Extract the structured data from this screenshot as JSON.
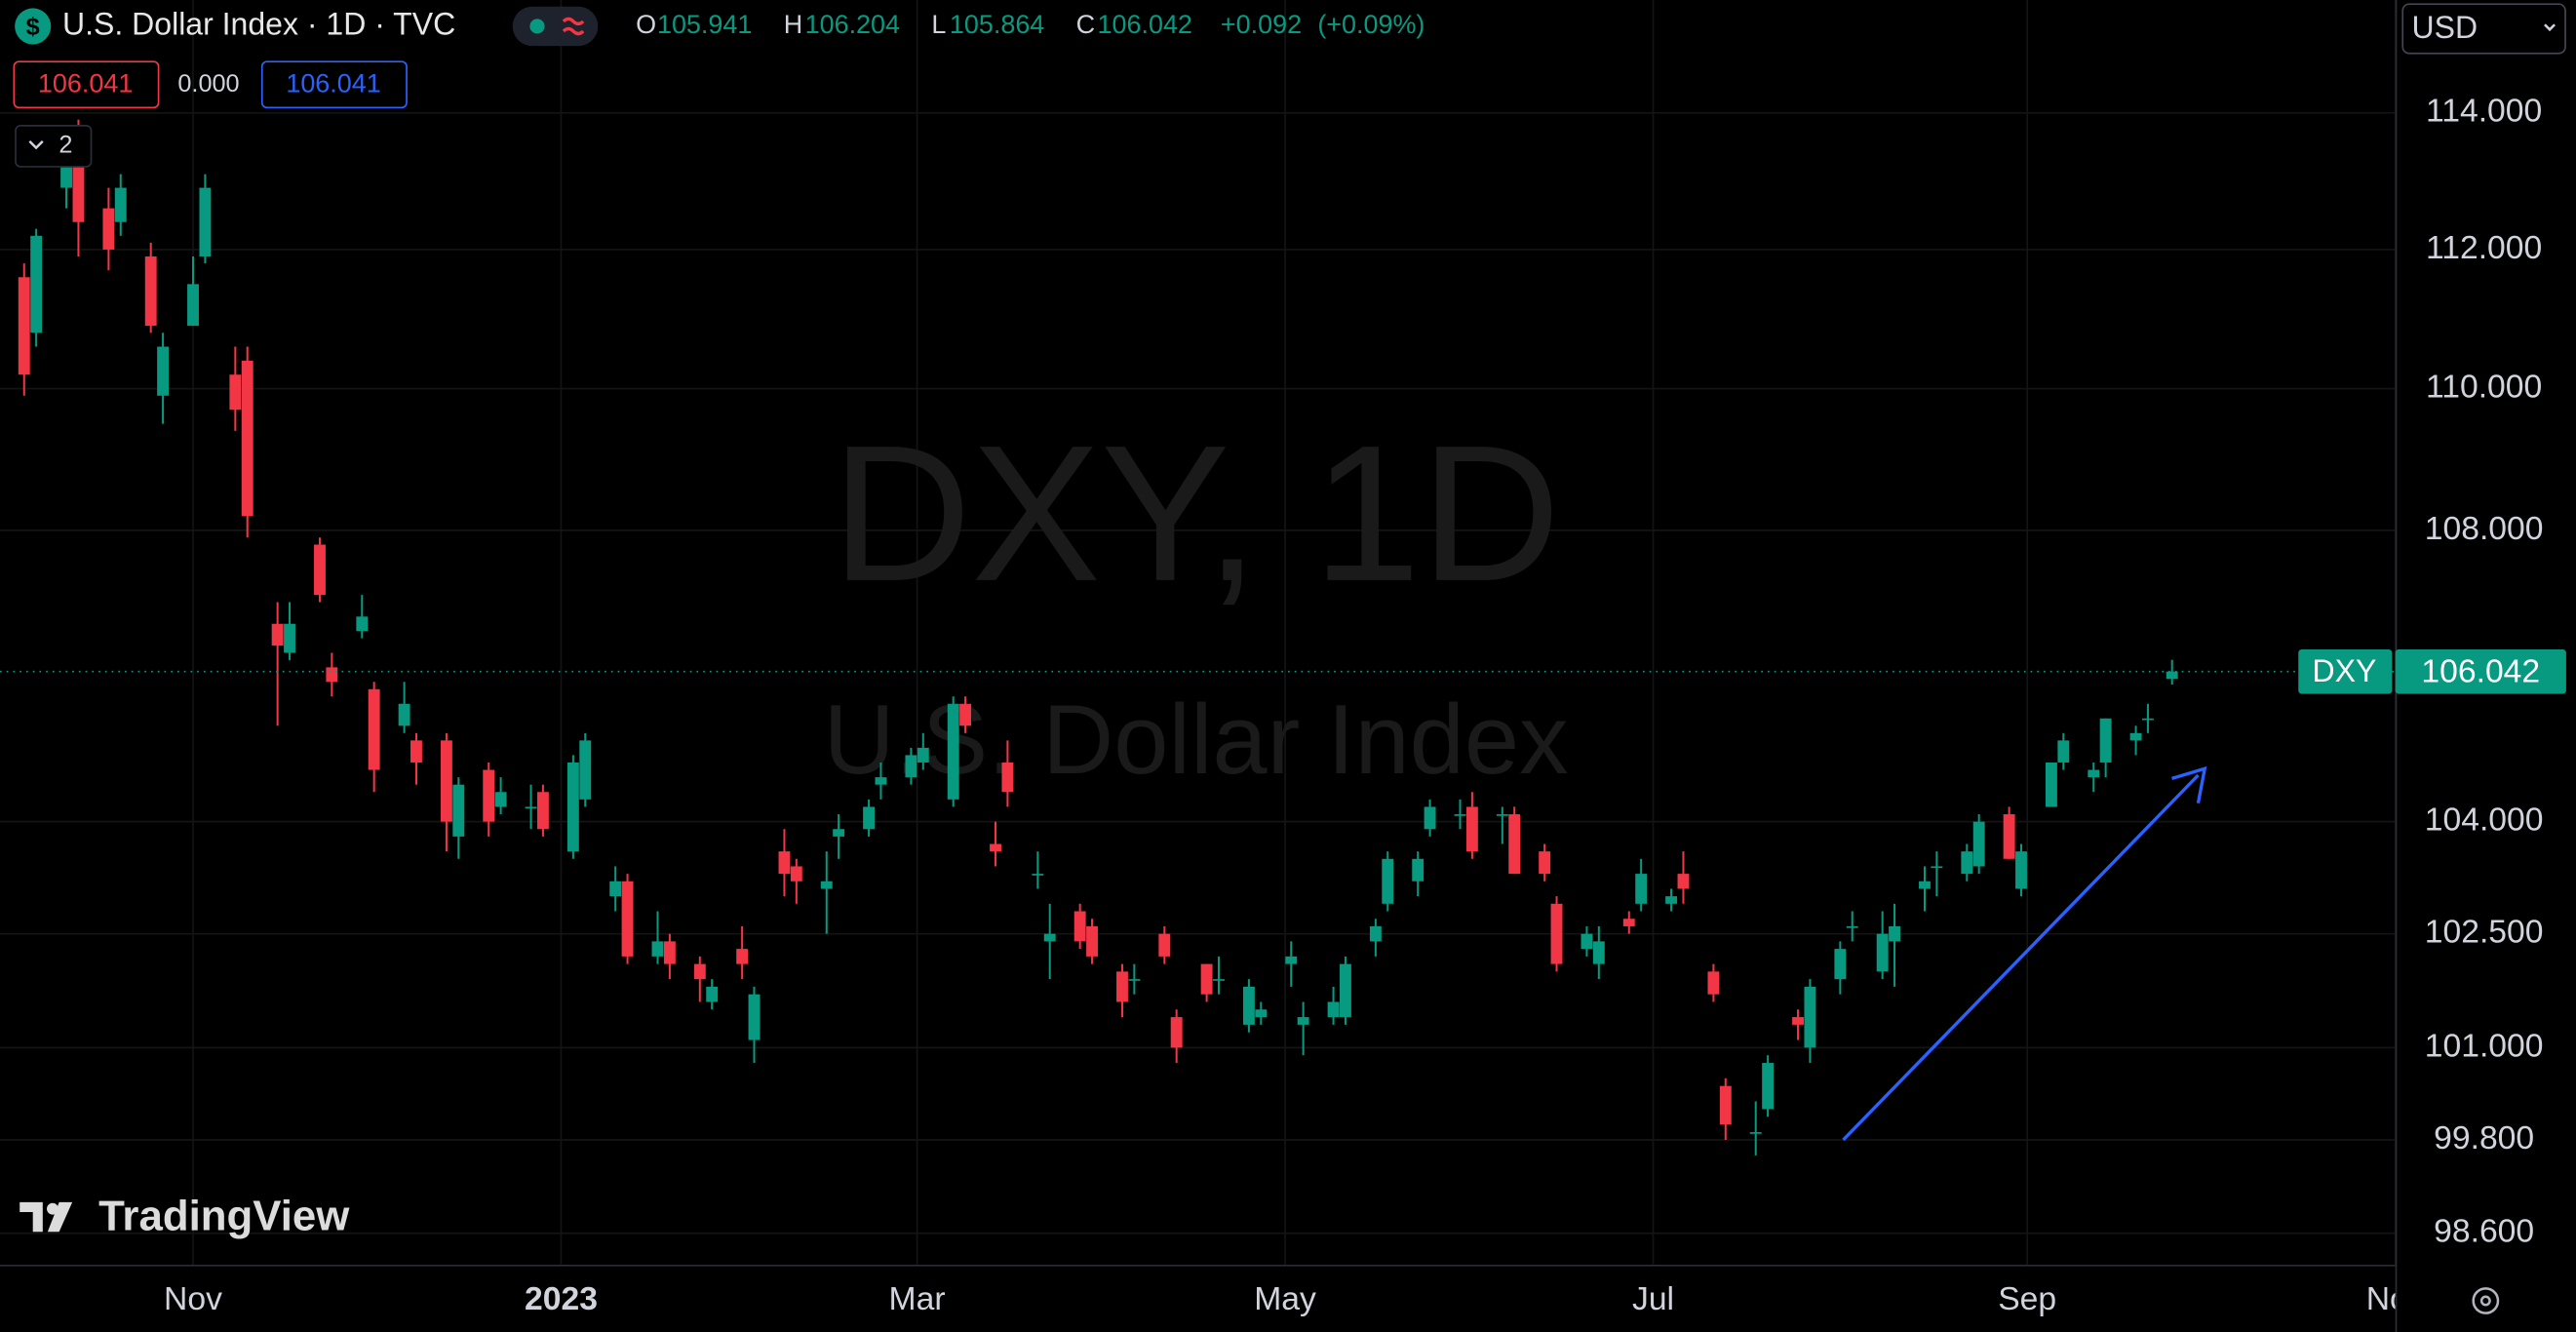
{
  "chart_data": {
    "type": "candlestick",
    "header": {
      "symbol_icon": "$",
      "title": "U.S. Dollar Index · 1D · TVC",
      "open_label": "O",
      "high_label": "H",
      "low_label": "L",
      "close_label": "C",
      "change": "+0.092",
      "change_percent": "(+0.09%)",
      "bid": "106.041",
      "spread": "0.000",
      "ask": "106.041",
      "indicators_count": "2",
      "currency": "USD"
    },
    "watermark": "DXY, 1D",
    "watermark_subtitle": "U.S. Dollar Index",
    "symbol": "DXY",
    "logo": "TradingView",
    "log": true,
    "grid": true,
    "up_color": "#089981",
    "down_color": "#f23645",
    "xlim": [
      "2022-09-30",
      "2023-11-01"
    ],
    "xticks": [
      {
        "value": "2022-11-01",
        "label": "Nov"
      },
      {
        "value": "2023-01-01",
        "label": "2023"
      },
      {
        "value": "2023-03-01",
        "label": "Mar"
      },
      {
        "value": "2023-05-01",
        "label": "May"
      },
      {
        "value": "2023-07-01",
        "label": "Jul"
      },
      {
        "value": "2023-09-01",
        "label": "Sep"
      },
      {
        "value": "2023-11-01",
        "label": "Nov"
      }
    ],
    "ylim": [
      98.2,
      115.68
    ],
    "yticks": [
      {
        "value": 114,
        "label": "114.000"
      },
      {
        "value": 112,
        "label": "112.000"
      },
      {
        "value": 110,
        "label": "110.000"
      },
      {
        "value": 108,
        "label": "108.000"
      },
      {
        "value": 104,
        "label": "104.000"
      },
      {
        "value": 102.5,
        "label": "102.500"
      },
      {
        "value": 101,
        "label": "101.000"
      },
      {
        "value": 99.8,
        "label": "99.800"
      },
      {
        "value": 98.6,
        "label": "98.600"
      }
    ],
    "x": [
      "2022-10-04",
      "2022-10-06",
      "2022-10-11",
      "2022-10-13",
      "2022-10-18",
      "2022-10-20",
      "2022-10-25",
      "2022-10-27",
      "2022-11-01",
      "2022-11-03",
      "2022-11-08",
      "2022-11-10",
      "2022-11-15",
      "2022-11-17",
      "2022-11-22",
      "2022-11-24",
      "2022-11-29",
      "2022-12-01",
      "2022-12-06",
      "2022-12-08",
      "2022-12-13",
      "2022-12-15",
      "2022-12-20",
      "2022-12-22",
      "2022-12-27",
      "2022-12-29",
      "2023-01-03",
      "2023-01-05",
      "2023-01-10",
      "2023-01-12",
      "2023-01-17",
      "2023-01-19",
      "2023-01-24",
      "2023-01-26",
      "2023-01-31",
      "2023-02-02",
      "2023-02-07",
      "2023-02-09",
      "2023-02-14",
      "2023-02-16",
      "2023-02-21",
      "2023-02-23",
      "2023-02-28",
      "2023-03-02",
      "2023-03-07",
      "2023-03-09",
      "2023-03-14",
      "2023-03-16",
      "2023-03-21",
      "2023-03-23",
      "2023-03-28",
      "2023-03-30",
      "2023-04-04",
      "2023-04-06",
      "2023-04-11",
      "2023-04-13",
      "2023-04-18",
      "2023-04-20",
      "2023-04-25",
      "2023-04-27",
      "2023-05-02",
      "2023-05-04",
      "2023-05-09",
      "2023-05-11",
      "2023-05-16",
      "2023-05-18",
      "2023-05-23",
      "2023-05-25",
      "2023-05-30",
      "2023-06-01",
      "2023-06-06",
      "2023-06-08",
      "2023-06-13",
      "2023-06-15",
      "2023-06-20",
      "2023-06-22",
      "2023-06-27",
      "2023-06-29",
      "2023-07-04",
      "2023-07-06",
      "2023-07-11",
      "2023-07-13",
      "2023-07-18",
      "2023-07-20",
      "2023-07-25",
      "2023-07-27",
      "2023-08-01",
      "2023-08-03",
      "2023-08-08",
      "2023-08-10",
      "2023-08-15",
      "2023-08-17",
      "2023-08-22",
      "2023-08-24",
      "2023-08-29",
      "2023-08-31",
      "2023-09-05",
      "2023-09-07",
      "2023-09-12",
      "2023-09-14",
      "2023-09-19",
      "2023-09-21",
      "2023-09-25"
    ],
    "ohlc": [
      [
        111.6,
        111.8,
        109.9,
        110.2
      ],
      [
        110.8,
        112.3,
        110.6,
        112.2
      ],
      [
        112.9,
        113.3,
        112.6,
        113.2
      ],
      [
        113.2,
        113.9,
        111.9,
        112.4
      ],
      [
        112.6,
        112.9,
        111.7,
        112.0
      ],
      [
        112.4,
        113.1,
        112.2,
        112.9
      ],
      [
        111.9,
        112.1,
        110.8,
        110.9
      ],
      [
        109.9,
        110.8,
        109.5,
        110.6
      ],
      [
        110.9,
        111.9,
        110.9,
        111.5
      ],
      [
        111.9,
        113.1,
        111.8,
        112.9
      ],
      [
        110.2,
        110.6,
        109.4,
        109.7
      ],
      [
        110.4,
        110.6,
        107.9,
        108.2
      ],
      [
        106.7,
        107.0,
        105.3,
        106.4
      ],
      [
        106.3,
        107.0,
        106.2,
        106.7
      ],
      [
        107.8,
        107.9,
        107.0,
        107.1
      ],
      [
        106.1,
        106.3,
        105.7,
        105.9
      ],
      [
        106.6,
        107.1,
        106.5,
        106.8
      ],
      [
        105.8,
        105.9,
        104.4,
        104.7
      ],
      [
        105.3,
        105.9,
        105.2,
        105.6
      ],
      [
        105.1,
        105.2,
        104.5,
        104.8
      ],
      [
        105.1,
        105.2,
        103.6,
        104.0
      ],
      [
        103.8,
        104.6,
        103.5,
        104.5
      ],
      [
        104.7,
        104.8,
        103.8,
        104.0
      ],
      [
        104.2,
        104.6,
        104.1,
        104.4
      ],
      [
        104.2,
        104.5,
        103.9,
        104.2
      ],
      [
        104.4,
        104.5,
        103.8,
        103.9
      ],
      [
        103.6,
        104.9,
        103.5,
        104.8
      ],
      [
        104.3,
        105.2,
        104.2,
        105.1
      ],
      [
        103.0,
        103.4,
        102.8,
        103.2
      ],
      [
        103.2,
        103.3,
        102.1,
        102.2
      ],
      [
        102.2,
        102.8,
        102.1,
        102.4
      ],
      [
        102.4,
        102.5,
        101.9,
        102.1
      ],
      [
        102.1,
        102.2,
        101.6,
        101.9
      ],
      [
        101.6,
        101.9,
        101.5,
        101.8
      ],
      [
        102.3,
        102.6,
        101.9,
        102.1
      ],
      [
        101.1,
        101.8,
        100.8,
        101.7
      ],
      [
        103.6,
        103.9,
        103.0,
        103.3
      ],
      [
        103.4,
        103.5,
        102.9,
        103.2
      ],
      [
        103.1,
        103.6,
        102.5,
        103.2
      ],
      [
        103.8,
        104.1,
        103.5,
        103.9
      ],
      [
        103.9,
        104.3,
        103.8,
        104.2
      ],
      [
        104.5,
        104.8,
        104.3,
        104.6
      ],
      [
        104.6,
        105.0,
        104.5,
        104.9
      ],
      [
        104.8,
        105.2,
        104.7,
        105.0
      ],
      [
        104.3,
        105.7,
        104.2,
        105.6
      ],
      [
        105.6,
        105.7,
        105.2,
        105.3
      ],
      [
        103.7,
        104.0,
        103.4,
        103.6
      ],
      [
        104.8,
        105.1,
        104.2,
        104.4
      ],
      [
        103.3,
        103.6,
        103.1,
        103.3
      ],
      [
        102.4,
        102.9,
        101.9,
        102.5
      ],
      [
        102.8,
        102.9,
        102.3,
        102.4
      ],
      [
        102.6,
        102.7,
        102.1,
        102.2
      ],
      [
        102.0,
        102.1,
        101.4,
        101.6
      ],
      [
        101.9,
        102.1,
        101.7,
        101.9
      ],
      [
        102.5,
        102.6,
        102.1,
        102.2
      ],
      [
        101.4,
        101.5,
        100.8,
        101.0
      ],
      [
        102.1,
        102.1,
        101.6,
        101.7
      ],
      [
        101.9,
        102.2,
        101.7,
        101.9
      ],
      [
        101.3,
        101.9,
        101.2,
        101.8
      ],
      [
        101.4,
        101.6,
        101.3,
        101.5
      ],
      [
        102.1,
        102.4,
        101.8,
        102.2
      ],
      [
        101.3,
        101.6,
        100.9,
        101.4
      ],
      [
        101.4,
        101.8,
        101.3,
        101.6
      ],
      [
        101.4,
        102.2,
        101.3,
        102.1
      ],
      [
        102.4,
        102.7,
        102.2,
        102.6
      ],
      [
        102.9,
        103.6,
        102.8,
        103.5
      ],
      [
        103.2,
        103.6,
        103.0,
        103.5
      ],
      [
        103.9,
        104.3,
        103.8,
        104.2
      ],
      [
        104.1,
        104.3,
        103.9,
        104.1
      ],
      [
        104.2,
        104.4,
        103.5,
        103.6
      ],
      [
        104.1,
        104.2,
        103.7,
        104.1
      ],
      [
        104.1,
        104.2,
        103.3,
        103.3
      ],
      [
        103.6,
        103.7,
        103.2,
        103.3
      ],
      [
        102.9,
        103.0,
        102.0,
        102.1
      ],
      [
        102.3,
        102.6,
        102.2,
        102.5
      ],
      [
        102.1,
        102.6,
        101.9,
        102.4
      ],
      [
        102.7,
        102.8,
        102.5,
        102.6
      ],
      [
        102.9,
        103.5,
        102.8,
        103.3
      ],
      [
        102.9,
        103.1,
        102.8,
        103.0
      ],
      [
        103.3,
        103.6,
        102.9,
        103.1
      ],
      [
        102.0,
        102.1,
        101.6,
        101.7
      ],
      [
        100.5,
        100.6,
        99.8,
        100.0
      ],
      [
        99.9,
        100.3,
        99.6,
        99.9
      ],
      [
        100.2,
        100.9,
        100.1,
        100.8
      ],
      [
        101.4,
        101.5,
        101.1,
        101.3
      ],
      [
        101.0,
        101.9,
        100.8,
        101.8
      ],
      [
        101.9,
        102.4,
        101.7,
        102.3
      ],
      [
        102.6,
        102.8,
        102.4,
        102.6
      ],
      [
        102.0,
        102.8,
        101.9,
        102.5
      ],
      [
        102.4,
        102.9,
        101.8,
        102.6
      ],
      [
        103.1,
        103.4,
        102.8,
        103.2
      ],
      [
        103.4,
        103.6,
        103.0,
        103.4
      ],
      [
        103.3,
        103.7,
        103.2,
        103.6
      ],
      [
        103.4,
        104.1,
        103.3,
        104.0
      ],
      [
        104.1,
        104.2,
        103.5,
        103.5
      ],
      [
        103.1,
        103.7,
        103.0,
        103.6
      ],
      [
        104.2,
        104.8,
        104.2,
        104.8
      ],
      [
        104.8,
        105.2,
        104.7,
        105.1
      ],
      [
        104.6,
        104.8,
        104.4,
        104.7
      ],
      [
        104.8,
        105.4,
        104.6,
        105.4
      ],
      [
        105.1,
        105.3,
        104.9,
        105.2
      ],
      [
        105.4,
        105.6,
        105.2,
        105.4
      ],
      [
        105.941,
        106.204,
        105.864,
        106.042
      ]
    ]
  }
}
